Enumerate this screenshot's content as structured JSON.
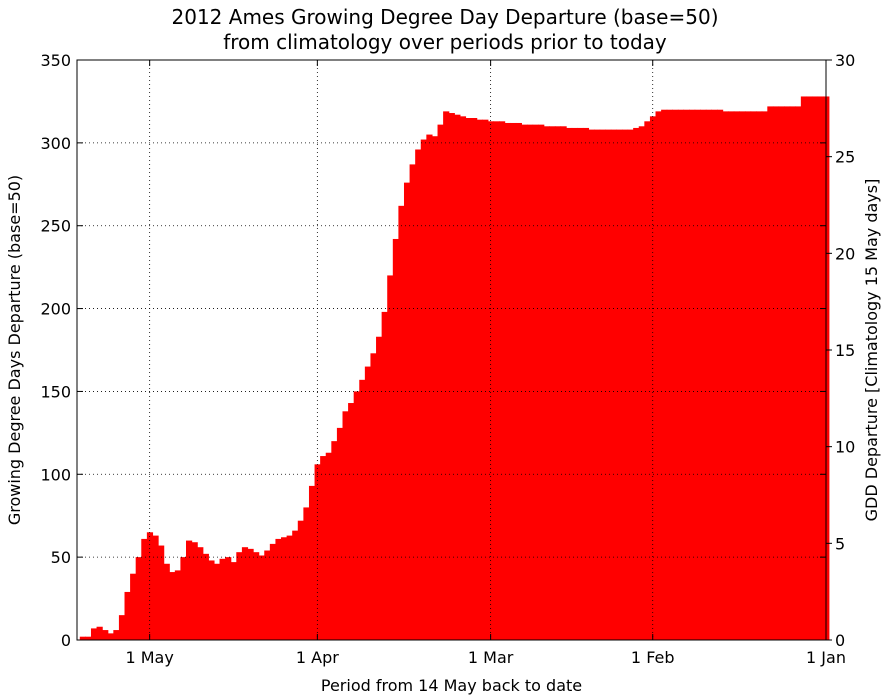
{
  "chart_data": {
    "type": "bar",
    "title": "2012 Ames Growing Degree Day Departure (base=50)",
    "subtitle": "from climatology over periods prior to today",
    "xlabel": "Period from 14 May back to date",
    "ylabel": "Growing Degree Days Departure (base=50)",
    "ylabel_right": "GDD Departure [Climatology 15 May days]",
    "x_reversed": true,
    "xlim": [
      "2012-05-14",
      "2012-01-01"
    ],
    "ylim": [
      0,
      350
    ],
    "ylim_right": [
      0,
      30
    ],
    "x_tick_labels": [
      "1 May",
      "1 Apr",
      "1 Mar",
      "1 Feb",
      "1 Jan"
    ],
    "x_tick_dates": [
      "2012-05-01",
      "2012-04-01",
      "2012-03-01",
      "2012-02-01",
      "2012-01-01"
    ],
    "y_ticks": [
      0,
      50,
      100,
      150,
      200,
      250,
      300,
      350
    ],
    "y_ticks_right": [
      0,
      5,
      10,
      15,
      20,
      25,
      30
    ],
    "grid": true,
    "bar_color": "#ff0000",
    "series": [
      {
        "values": [
          [
            "2012-05-13",
            2
          ],
          [
            "2012-05-12",
            2
          ],
          [
            "2012-05-11",
            7
          ],
          [
            "2012-05-10",
            8
          ],
          [
            "2012-05-09",
            6
          ],
          [
            "2012-05-08",
            4
          ],
          [
            "2012-05-07",
            6
          ],
          [
            "2012-05-06",
            15
          ],
          [
            "2012-05-05",
            29
          ],
          [
            "2012-05-04",
            40
          ],
          [
            "2012-05-03",
            50
          ],
          [
            "2012-05-02",
            61
          ],
          [
            "2012-05-01",
            65
          ],
          [
            "2012-04-30",
            63
          ],
          [
            "2012-04-29",
            57
          ],
          [
            "2012-04-28",
            46
          ],
          [
            "2012-04-27",
            41
          ],
          [
            "2012-04-26",
            42
          ],
          [
            "2012-04-25",
            50
          ],
          [
            "2012-04-24",
            60
          ],
          [
            "2012-04-23",
            59
          ],
          [
            "2012-04-22",
            56
          ],
          [
            "2012-04-21",
            52
          ],
          [
            "2012-04-20",
            48
          ],
          [
            "2012-04-19",
            46
          ],
          [
            "2012-04-18",
            49
          ],
          [
            "2012-04-17",
            50
          ],
          [
            "2012-04-16",
            47
          ],
          [
            "2012-04-15",
            53
          ],
          [
            "2012-04-14",
            56
          ],
          [
            "2012-04-13",
            55
          ],
          [
            "2012-04-12",
            53
          ],
          [
            "2012-04-11",
            51
          ],
          [
            "2012-04-10",
            54
          ],
          [
            "2012-04-09",
            58
          ],
          [
            "2012-04-08",
            61
          ],
          [
            "2012-04-07",
            62
          ],
          [
            "2012-04-06",
            63
          ],
          [
            "2012-04-05",
            66
          ],
          [
            "2012-04-04",
            72
          ],
          [
            "2012-04-03",
            80
          ],
          [
            "2012-04-02",
            93
          ],
          [
            "2012-04-01",
            106
          ],
          [
            "2012-03-31",
            111
          ],
          [
            "2012-03-30",
            113
          ],
          [
            "2012-03-29",
            120
          ],
          [
            "2012-03-28",
            128
          ],
          [
            "2012-03-27",
            138
          ],
          [
            "2012-03-26",
            143
          ],
          [
            "2012-03-25",
            150
          ],
          [
            "2012-03-24",
            157
          ],
          [
            "2012-03-23",
            165
          ],
          [
            "2012-03-22",
            173
          ],
          [
            "2012-03-21",
            183
          ],
          [
            "2012-03-20",
            198
          ],
          [
            "2012-03-19",
            220
          ],
          [
            "2012-03-18",
            242
          ],
          [
            "2012-03-17",
            262
          ],
          [
            "2012-03-16",
            276
          ],
          [
            "2012-03-15",
            287
          ],
          [
            "2012-03-14",
            296
          ],
          [
            "2012-03-13",
            302
          ],
          [
            "2012-03-12",
            305
          ],
          [
            "2012-03-11",
            304
          ],
          [
            "2012-03-10",
            311
          ],
          [
            "2012-03-09",
            319
          ],
          [
            "2012-03-08",
            318
          ],
          [
            "2012-03-07",
            317
          ],
          [
            "2012-03-06",
            316
          ],
          [
            "2012-03-05",
            315
          ],
          [
            "2012-03-04",
            315
          ],
          [
            "2012-03-03",
            314
          ],
          [
            "2012-03-02",
            314
          ],
          [
            "2012-03-01",
            313
          ],
          [
            "2012-02-29",
            313
          ],
          [
            "2012-02-28",
            313
          ],
          [
            "2012-02-27",
            312
          ],
          [
            "2012-02-26",
            312
          ],
          [
            "2012-02-25",
            312
          ],
          [
            "2012-02-24",
            311
          ],
          [
            "2012-02-23",
            311
          ],
          [
            "2012-02-22",
            311
          ],
          [
            "2012-02-21",
            311
          ],
          [
            "2012-02-20",
            310
          ],
          [
            "2012-02-19",
            310
          ],
          [
            "2012-02-18",
            310
          ],
          [
            "2012-02-17",
            310
          ],
          [
            "2012-02-16",
            309
          ],
          [
            "2012-02-15",
            309
          ],
          [
            "2012-02-14",
            309
          ],
          [
            "2012-02-13",
            309
          ],
          [
            "2012-02-12",
            308
          ],
          [
            "2012-02-11",
            308
          ],
          [
            "2012-02-10",
            308
          ],
          [
            "2012-02-09",
            308
          ],
          [
            "2012-02-08",
            308
          ],
          [
            "2012-02-07",
            308
          ],
          [
            "2012-02-06",
            308
          ],
          [
            "2012-02-05",
            308
          ],
          [
            "2012-02-04",
            309
          ],
          [
            "2012-02-03",
            310
          ],
          [
            "2012-02-02",
            313
          ],
          [
            "2012-02-01",
            316
          ],
          [
            "2012-01-31",
            319
          ],
          [
            "2012-01-30",
            320
          ],
          [
            "2012-01-29",
            320
          ],
          [
            "2012-01-28",
            320
          ],
          [
            "2012-01-27",
            320
          ],
          [
            "2012-01-26",
            320
          ],
          [
            "2012-01-25",
            320
          ],
          [
            "2012-01-24",
            320
          ],
          [
            "2012-01-23",
            320
          ],
          [
            "2012-01-22",
            320
          ],
          [
            "2012-01-21",
            320
          ],
          [
            "2012-01-20",
            320
          ],
          [
            "2012-01-19",
            319
          ],
          [
            "2012-01-18",
            319
          ],
          [
            "2012-01-17",
            319
          ],
          [
            "2012-01-16",
            319
          ],
          [
            "2012-01-15",
            319
          ],
          [
            "2012-01-14",
            319
          ],
          [
            "2012-01-13",
            319
          ],
          [
            "2012-01-12",
            319
          ],
          [
            "2012-01-11",
            322
          ],
          [
            "2012-01-10",
            322
          ],
          [
            "2012-01-09",
            322
          ],
          [
            "2012-01-08",
            322
          ],
          [
            "2012-01-07",
            322
          ],
          [
            "2012-01-06",
            322
          ],
          [
            "2012-01-05",
            328
          ],
          [
            "2012-01-04",
            328
          ],
          [
            "2012-01-03",
            328
          ],
          [
            "2012-01-02",
            328
          ],
          [
            "2012-01-01",
            328
          ]
        ]
      }
    ]
  }
}
